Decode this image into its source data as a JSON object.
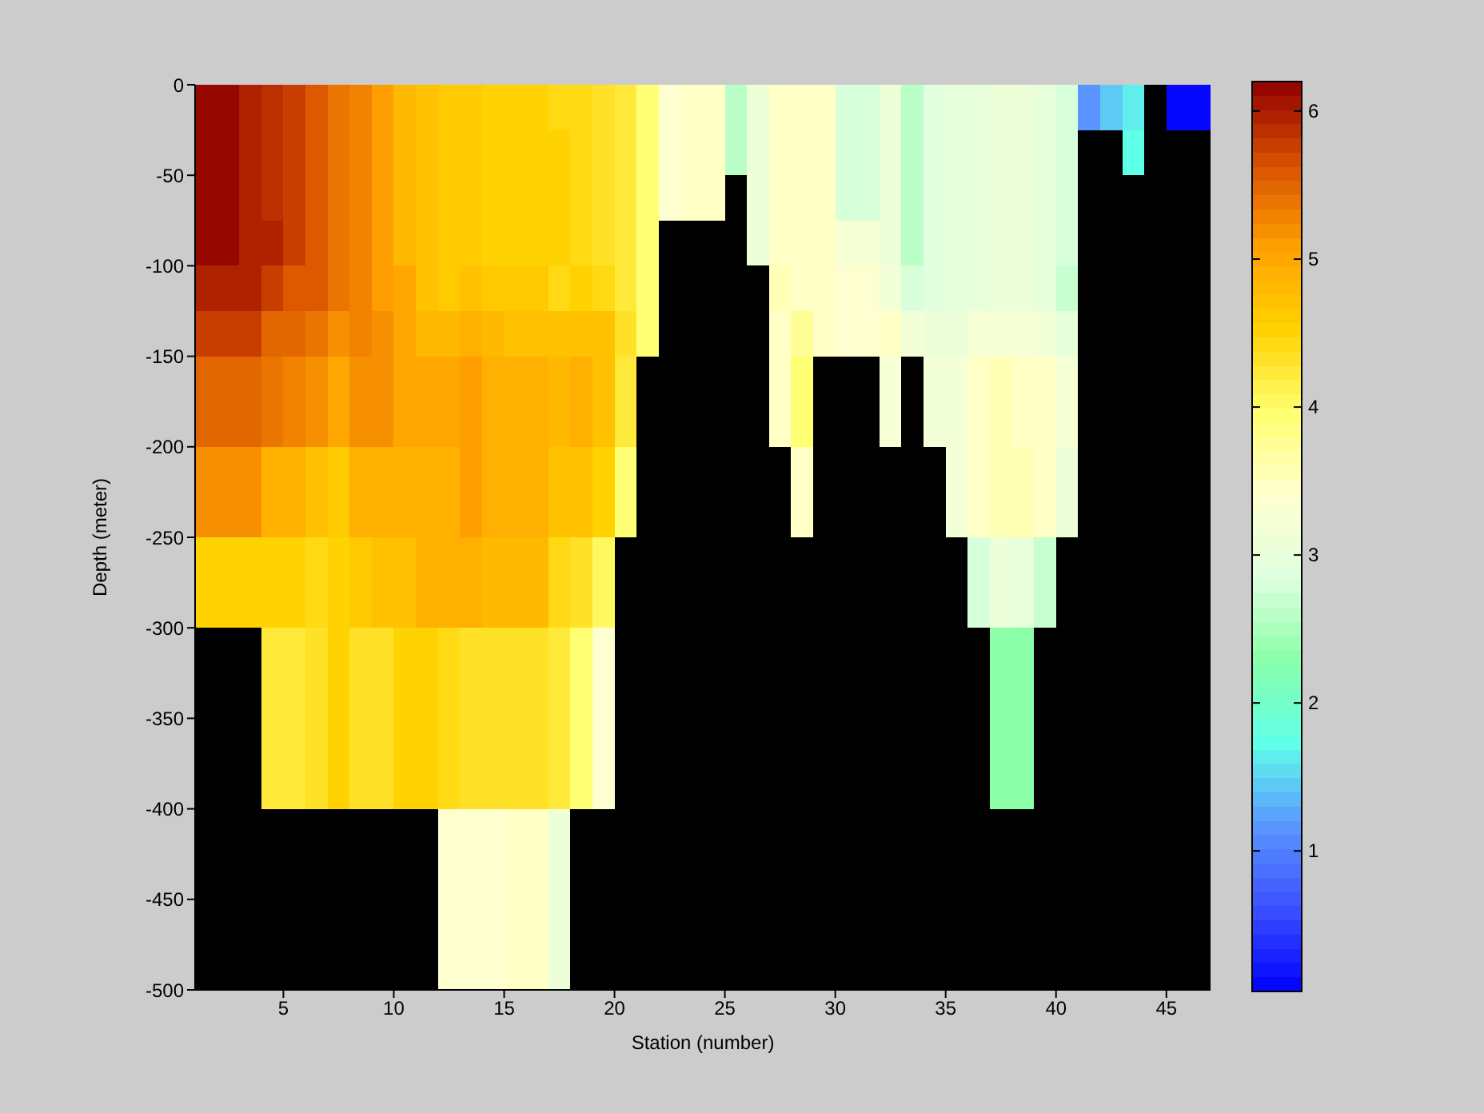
{
  "chart_data": {
    "type": "heatmap",
    "xlabel": "Station (number)",
    "ylabel": "Depth (meter)",
    "x": [
      1.5,
      2.5,
      3.5,
      4.5,
      5.5,
      6.5,
      7.5,
      8.5,
      9.5,
      10.5,
      11.5,
      12.5,
      13.5,
      14.5,
      15.5,
      16.5,
      17.5,
      18.5,
      19.5,
      20.5,
      21.5,
      22.5,
      23.5,
      24.5,
      25.5,
      26.5,
      27.5,
      28.5,
      29.5,
      30.5,
      31.5,
      32.5,
      33.5,
      34.5,
      35.5,
      36.5,
      37.5,
      38.5,
      39.5,
      40.5,
      41.5,
      42.5,
      43.5,
      44.5,
      45.5,
      46.5
    ],
    "xlim": [
      1,
      47
    ],
    "xticks": [
      5,
      10,
      15,
      20,
      25,
      30,
      35,
      40,
      45
    ],
    "ylim": [
      -500,
      0
    ],
    "yticks": [
      -500,
      -450,
      -400,
      -350,
      -300,
      -250,
      -200,
      -150,
      -100,
      -50,
      0
    ],
    "clim": [
      0.05,
      6.2
    ],
    "cticks": [
      1,
      2,
      3,
      4,
      5,
      6
    ],
    "colors": [
      "#0000ff",
      "#3c50ff",
      "#5a96ff",
      "#60ffe8",
      "#88ffa8",
      "#e0ffe0",
      "#ffffd0",
      "#ffff70",
      "#ffd200",
      "#ffa000",
      "#d85000",
      "#900000"
    ],
    "cells": [
      [
        6.15,
        6.15,
        6.0,
        5.9,
        5.75,
        5.6,
        5.4,
        5.25,
        5.1,
        4.85,
        4.7,
        4.65,
        4.65,
        4.55,
        4.55,
        4.55,
        4.45,
        4.45,
        4.35,
        4.2,
        3.95,
        3.35,
        3.45,
        3.45,
        2.55,
        3.05,
        3.45,
        3.5,
        3.5,
        2.8,
        2.8,
        3.05,
        2.6,
        2.85,
        2.95,
        2.95,
        3.05,
        3.05,
        2.95,
        2.8,
        1.15,
        1.4,
        1.6,
        null,
        0.1,
        0.1
      ],
      [
        6.15,
        6.15,
        6.0,
        5.9,
        5.75,
        5.6,
        5.4,
        5.25,
        5.1,
        4.85,
        4.7,
        4.65,
        4.65,
        4.55,
        4.55,
        4.55,
        4.5,
        4.45,
        4.35,
        4.2,
        3.95,
        3.35,
        3.45,
        3.45,
        2.55,
        3.05,
        3.45,
        3.5,
        3.5,
        2.8,
        2.8,
        3.05,
        2.6,
        2.85,
        2.95,
        2.95,
        3.05,
        3.05,
        2.95,
        2.8,
        null,
        null,
        1.7,
        null,
        null,
        null
      ],
      [
        6.15,
        6.15,
        6.0,
        5.9,
        5.75,
        5.6,
        5.4,
        5.25,
        5.1,
        4.85,
        4.7,
        4.65,
        4.65,
        4.55,
        4.55,
        4.55,
        4.5,
        4.45,
        4.35,
        4.2,
        3.95,
        3.35,
        3.45,
        3.45,
        null,
        3.05,
        3.45,
        3.5,
        3.5,
        2.8,
        2.8,
        3.05,
        2.6,
        2.85,
        2.95,
        2.95,
        3.05,
        3.05,
        2.95,
        2.8,
        null,
        null,
        null,
        null,
        null,
        null
      ],
      [
        6.15,
        6.15,
        6.0,
        5.95,
        5.75,
        5.6,
        5.4,
        5.25,
        5.1,
        4.85,
        4.7,
        4.65,
        4.65,
        4.55,
        4.55,
        4.55,
        4.5,
        4.45,
        4.35,
        4.2,
        3.95,
        null,
        null,
        null,
        null,
        3.05,
        3.45,
        3.5,
        3.5,
        3.25,
        3.25,
        3.05,
        2.6,
        2.85,
        2.95,
        2.95,
        3.05,
        3.05,
        2.95,
        2.8,
        null,
        null,
        null,
        null,
        null,
        null
      ],
      [
        6.0,
        6.0,
        5.95,
        5.8,
        5.6,
        5.6,
        5.4,
        5.25,
        5.1,
        5.0,
        4.7,
        4.65,
        4.7,
        4.65,
        4.65,
        4.65,
        4.45,
        4.55,
        4.4,
        4.2,
        3.95,
        null,
        null,
        null,
        null,
        null,
        3.55,
        3.5,
        3.5,
        3.35,
        3.35,
        3.2,
        2.75,
        2.85,
        2.95,
        2.95,
        3.05,
        3.05,
        2.95,
        2.7,
        null,
        null,
        null,
        null,
        null,
        null
      ],
      [
        5.8,
        5.8,
        5.8,
        5.5,
        5.5,
        5.4,
        5.15,
        5.25,
        5.15,
        5.0,
        4.85,
        4.85,
        4.9,
        4.85,
        4.75,
        4.75,
        4.75,
        4.75,
        4.7,
        4.3,
        3.95,
        null,
        null,
        null,
        null,
        null,
        3.5,
        3.75,
        3.45,
        3.35,
        3.35,
        3.5,
        3.2,
        3.05,
        3.05,
        3.3,
        3.3,
        3.3,
        3.2,
        2.95,
        null,
        null,
        null,
        null,
        null,
        null
      ],
      [
        5.5,
        5.5,
        5.5,
        5.4,
        5.25,
        5.15,
        5.0,
        5.15,
        5.15,
        5.0,
        5.0,
        5.0,
        5.1,
        4.9,
        4.9,
        4.9,
        4.85,
        4.9,
        4.75,
        4.25,
        null,
        null,
        null,
        null,
        null,
        null,
        3.5,
        3.95,
        null,
        null,
        null,
        3.25,
        null,
        3.2,
        3.2,
        3.45,
        3.55,
        3.45,
        3.45,
        3.25,
        null,
        null,
        null,
        null,
        null,
        null
      ],
      [
        5.5,
        5.5,
        5.5,
        5.4,
        5.25,
        5.15,
        5.0,
        5.15,
        5.15,
        5.0,
        5.0,
        5.0,
        5.1,
        4.9,
        4.9,
        4.9,
        4.85,
        4.9,
        4.75,
        4.25,
        null,
        null,
        null,
        null,
        null,
        null,
        3.5,
        3.95,
        null,
        null,
        null,
        3.25,
        null,
        3.2,
        3.2,
        3.45,
        3.55,
        3.45,
        3.45,
        3.25,
        null,
        null,
        null,
        null,
        null,
        null
      ],
      [
        5.2,
        5.2,
        5.2,
        4.9,
        4.9,
        4.75,
        4.65,
        4.9,
        4.9,
        4.9,
        4.9,
        4.9,
        5.1,
        4.9,
        4.9,
        4.9,
        4.75,
        4.75,
        4.55,
        3.9,
        null,
        null,
        null,
        null,
        null,
        null,
        null,
        3.45,
        null,
        null,
        null,
        null,
        null,
        null,
        3.2,
        3.45,
        3.55,
        3.55,
        3.45,
        3.05,
        null,
        null,
        null,
        null,
        null,
        null
      ],
      [
        5.2,
        5.2,
        5.2,
        4.9,
        4.9,
        4.75,
        4.65,
        4.9,
        4.9,
        4.9,
        4.9,
        4.9,
        5.1,
        4.9,
        4.9,
        4.9,
        4.75,
        4.75,
        4.55,
        3.9,
        null,
        null,
        null,
        null,
        null,
        null,
        null,
        3.45,
        null,
        null,
        null,
        null,
        null,
        null,
        3.2,
        3.45,
        3.55,
        3.55,
        3.45,
        3.05,
        null,
        null,
        null,
        null,
        null,
        null
      ],
      [
        4.55,
        4.55,
        4.55,
        4.55,
        4.55,
        4.4,
        4.5,
        4.65,
        4.75,
        4.75,
        4.9,
        4.9,
        4.9,
        4.85,
        4.85,
        4.85,
        4.4,
        4.35,
        4.0,
        null,
        null,
        null,
        null,
        null,
        null,
        null,
        null,
        null,
        null,
        null,
        null,
        null,
        null,
        null,
        null,
        2.8,
        3.05,
        2.95,
        2.7,
        null,
        null,
        null,
        null,
        null,
        null,
        null
      ],
      [
        4.55,
        4.55,
        4.55,
        4.55,
        4.55,
        4.4,
        4.5,
        4.65,
        4.75,
        4.75,
        4.9,
        4.9,
        4.9,
        4.85,
        4.85,
        4.85,
        4.4,
        4.35,
        4.0,
        null,
        null,
        null,
        null,
        null,
        null,
        null,
        null,
        null,
        null,
        null,
        null,
        null,
        null,
        null,
        null,
        2.8,
        3.05,
        2.95,
        2.7,
        null,
        null,
        null,
        null,
        null,
        null,
        null
      ],
      [
        null,
        null,
        null,
        4.2,
        4.25,
        4.35,
        4.55,
        4.35,
        4.35,
        4.5,
        4.55,
        4.4,
        4.35,
        4.35,
        4.35,
        4.35,
        4.2,
        3.95,
        3.35,
        null,
        null,
        null,
        null,
        null,
        null,
        null,
        null,
        null,
        null,
        null,
        null,
        null,
        null,
        null,
        null,
        null,
        2.35,
        2.35,
        null,
        null,
        null,
        null,
        null,
        null,
        null,
        null
      ],
      [
        null,
        null,
        null,
        4.2,
        4.25,
        4.35,
        4.55,
        4.35,
        4.35,
        4.5,
        4.55,
        4.4,
        4.35,
        4.35,
        4.35,
        4.35,
        4.2,
        3.95,
        3.35,
        null,
        null,
        null,
        null,
        null,
        null,
        null,
        null,
        null,
        null,
        null,
        null,
        null,
        null,
        null,
        null,
        null,
        2.35,
        2.35,
        null,
        null,
        null,
        null,
        null,
        null,
        null,
        null
      ],
      [
        null,
        null,
        null,
        4.2,
        4.25,
        4.35,
        4.55,
        4.35,
        4.35,
        4.5,
        4.55,
        4.4,
        4.35,
        4.35,
        4.35,
        4.35,
        4.2,
        3.95,
        3.35,
        null,
        null,
        null,
        null,
        null,
        null,
        null,
        null,
        null,
        null,
        null,
        null,
        null,
        null,
        null,
        null,
        null,
        2.35,
        2.35,
        null,
        null,
        null,
        null,
        null,
        null,
        null,
        null
      ],
      [
        null,
        null,
        null,
        4.2,
        4.25,
        4.35,
        4.55,
        4.35,
        4.35,
        4.5,
        4.55,
        4.4,
        4.35,
        4.35,
        4.35,
        4.35,
        4.2,
        3.95,
        3.35,
        null,
        null,
        null,
        null,
        null,
        null,
        null,
        null,
        null,
        null,
        null,
        null,
        null,
        null,
        null,
        null,
        null,
        2.35,
        2.35,
        null,
        null,
        null,
        null,
        null,
        null,
        null,
        null
      ],
      [
        null,
        null,
        null,
        null,
        null,
        null,
        null,
        null,
        null,
        null,
        null,
        3.35,
        3.35,
        3.35,
        3.45,
        3.45,
        3.05,
        null,
        null,
        null,
        null,
        null,
        null,
        null,
        null,
        null,
        null,
        null,
        null,
        null,
        null,
        null,
        null,
        null,
        null,
        null,
        null,
        null,
        null,
        null,
        null,
        null,
        null,
        null,
        null,
        null
      ],
      [
        null,
        null,
        null,
        null,
        null,
        null,
        null,
        null,
        null,
        null,
        null,
        3.35,
        3.35,
        3.35,
        3.45,
        3.45,
        3.05,
        null,
        null,
        null,
        null,
        null,
        null,
        null,
        null,
        null,
        null,
        null,
        null,
        null,
        null,
        null,
        null,
        null,
        null,
        null,
        null,
        null,
        null,
        null,
        null,
        null,
        null,
        null,
        null,
        null
      ],
      [
        null,
        null,
        null,
        null,
        null,
        null,
        null,
        null,
        null,
        null,
        null,
        3.35,
        3.35,
        3.35,
        3.45,
        3.45,
        3.05,
        null,
        null,
        null,
        null,
        null,
        null,
        null,
        null,
        null,
        null,
        null,
        null,
        null,
        null,
        null,
        null,
        null,
        null,
        null,
        null,
        null,
        null,
        null,
        null,
        null,
        null,
        null,
        null,
        null
      ],
      [
        null,
        null,
        null,
        null,
        null,
        null,
        null,
        null,
        null,
        null,
        null,
        3.35,
        3.35,
        3.35,
        3.45,
        3.45,
        3.05,
        null,
        null,
        null,
        null,
        null,
        null,
        null,
        null,
        null,
        null,
        null,
        null,
        null,
        null,
        null,
        null,
        null,
        null,
        null,
        null,
        null,
        null,
        null,
        null,
        null,
        null,
        null,
        null,
        null
      ]
    ]
  }
}
